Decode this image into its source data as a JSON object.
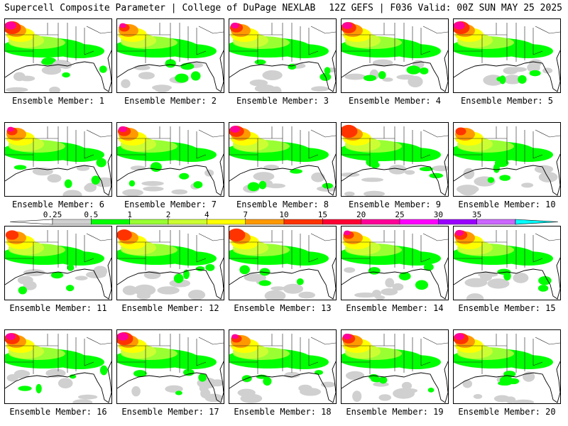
{
  "header": {
    "left": "Supercell Composite Parameter | College of DuPage NEXLAB",
    "right": "12Z GEFS | F036 Valid: 00Z SUN MAY 25 2025"
  },
  "colorbar": {
    "labels": [
      "0.25",
      "0.5",
      "1",
      "2",
      "4",
      "7",
      "10",
      "15",
      "20",
      "25",
      "30",
      "35"
    ],
    "colors": [
      "#d0d0d0",
      "#00ff00",
      "#99ff33",
      "#ccff33",
      "#ffff00",
      "#ff9900",
      "#ff3300",
      "#ff0033",
      "#ff0099",
      "#ff00ff",
      "#9900ff",
      "#cc66ff",
      "#00ffff"
    ]
  },
  "members": [
    {
      "label": "Ensemble Member: 1"
    },
    {
      "label": "Ensemble Member: 2"
    },
    {
      "label": "Ensemble Member: 3"
    },
    {
      "label": "Ensemble Member: 4"
    },
    {
      "label": "Ensemble Member: 5"
    },
    {
      "label": "Ensemble Member: 6"
    },
    {
      "label": "Ensemble Member: 7"
    },
    {
      "label": "Ensemble Member: 8"
    },
    {
      "label": "Ensemble Member: 9"
    },
    {
      "label": "Ensemble Member: 10"
    },
    {
      "label": "Ensemble Member: 11"
    },
    {
      "label": "Ensemble Member: 12"
    },
    {
      "label": "Ensemble Member: 13"
    },
    {
      "label": "Ensemble Member: 14"
    },
    {
      "label": "Ensemble Member: 15"
    },
    {
      "label": "Ensemble Member: 16"
    },
    {
      "label": "Ensemble Member: 17"
    },
    {
      "label": "Ensemble Member: 18"
    },
    {
      "label": "Ensemble Member: 19"
    },
    {
      "label": "Ensemble Member: 20"
    }
  ]
}
